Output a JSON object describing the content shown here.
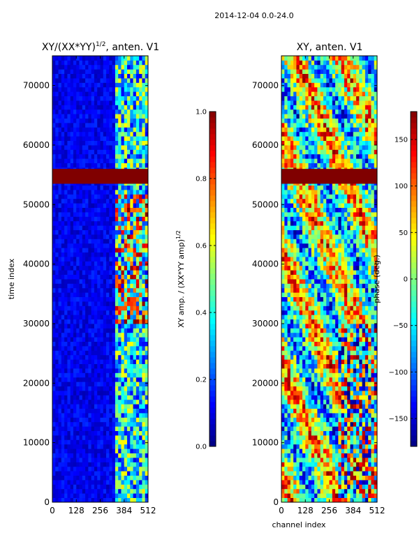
{
  "figure_title": "2014-12-04 0.0-24.0",
  "chart_data": [
    {
      "type": "heatmap",
      "title_main": "XY/(XX*YY)",
      "title_exp": "1/2",
      "title_suffix": ", anten. V1",
      "xlabel": "",
      "ylabel": "time index",
      "xlim": [
        0,
        512
      ],
      "ylim": [
        0,
        75000
      ],
      "xticks": [
        0,
        128,
        256,
        384,
        512
      ],
      "xtick_labels": [
        "0",
        "128",
        "256",
        "384",
        "512"
      ],
      "yticks": [
        0,
        10000,
        20000,
        30000,
        40000,
        50000,
        60000,
        70000
      ],
      "ytick_labels": [
        "0",
        "10000",
        "20000",
        "30000",
        "40000",
        "50000",
        "60000",
        "70000"
      ],
      "flagged_band_time": [
        53500,
        56000
      ],
      "colorbar": {
        "label_main": "XY amp. / (XX*YY amp)",
        "label_exp": "1/2",
        "range": [
          0.0,
          1.0
        ],
        "ticks": [
          0.0,
          0.2,
          0.4,
          0.6,
          0.8,
          1.0
        ],
        "tick_labels": [
          "0.0",
          "0.2",
          "0.4",
          "0.6",
          "0.8",
          "1.0"
        ]
      }
    },
    {
      "type": "heatmap",
      "title_main": "XY, anten. V1",
      "xlabel": "channel index",
      "ylabel": "",
      "xlim": [
        0,
        512
      ],
      "ylim": [
        0,
        75000
      ],
      "xticks": [
        0,
        128,
        256,
        384,
        512
      ],
      "xtick_labels": [
        "0",
        "128",
        "256",
        "384",
        "512"
      ],
      "yticks": [
        0,
        10000,
        20000,
        30000,
        40000,
        50000,
        60000,
        70000
      ],
      "ytick_labels": [
        "0",
        "10000",
        "20000",
        "30000",
        "40000",
        "50000",
        "60000",
        "70000"
      ],
      "flagged_band_time": [
        53500,
        56000
      ],
      "colorbar": {
        "label_main": "phase (deg.)",
        "range": [
          -180,
          180
        ],
        "ticks": [
          -150,
          -100,
          -50,
          0,
          50,
          100,
          150
        ],
        "tick_labels": [
          "−150",
          "−100",
          "−50",
          "0",
          "50",
          "100",
          "150"
        ]
      }
    }
  ],
  "colors": {
    "flag": "#800000",
    "jet": [
      "#00007f",
      "#0000ff",
      "#007fff",
      "#00ffff",
      "#7fff7f",
      "#ffff00",
      "#ff7f00",
      "#ff0000",
      "#7f0000"
    ]
  }
}
